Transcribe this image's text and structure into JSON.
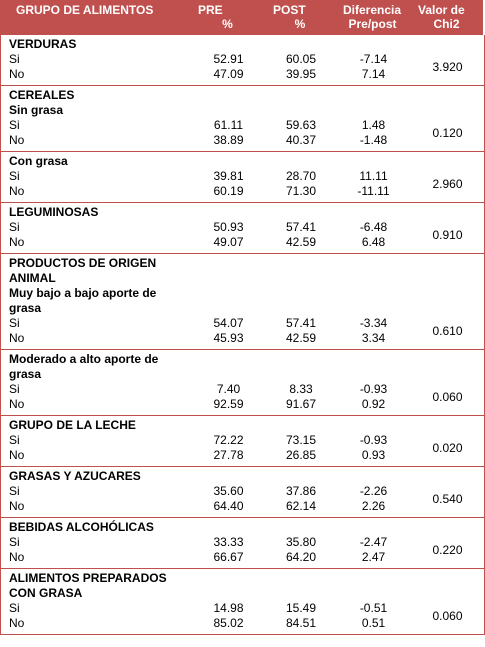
{
  "header": {
    "columns": [
      [
        "GRUPO DE ALIMENTOS"
      ],
      [
        "PRE",
        "%"
      ],
      [
        "POST",
        "%"
      ],
      [
        "Diferencia",
        "Pre/post"
      ],
      [
        "Valor de",
        "Chi2"
      ]
    ]
  },
  "table": {
    "blocks": [
      {
        "headings": [
          "VERDURAS"
        ],
        "rows": [
          [
            "Si",
            "52.91",
            "60.05",
            "-7.14"
          ],
          [
            "No",
            "47.09",
            "39.95",
            "7.14"
          ]
        ],
        "chi2": "3.920"
      },
      {
        "headings": [
          "CEREALES",
          "Sin grasa"
        ],
        "rows": [
          [
            "Si",
            "61.11",
            "59.63",
            "1.48"
          ],
          [
            "No",
            "38.89",
            "40.37",
            "-1.48"
          ]
        ],
        "chi2": "0.120"
      },
      {
        "headings": [
          "Con grasa"
        ],
        "rows": [
          [
            "Si",
            "39.81",
            "28.70",
            "11.11"
          ],
          [
            "No",
            "60.19",
            "71.30",
            "-11.11"
          ]
        ],
        "chi2": "2.960"
      },
      {
        "headings": [
          "LEGUMINOSAS"
        ],
        "rows": [
          [
            "Si",
            "50.93",
            "57.41",
            "-6.48"
          ],
          [
            "No",
            "49.07",
            "42.59",
            "6.48"
          ]
        ],
        "chi2": "0.910"
      },
      {
        "headings": [
          "PRODUCTOS DE ORIGEN ANIMAL",
          "Muy bajo a bajo aporte de grasa"
        ],
        "rows": [
          [
            "Si",
            "54.07",
            "57.41",
            "-3.34"
          ],
          [
            "No",
            "45.93",
            "42.59",
            "3.34"
          ]
        ],
        "chi2": "0.610"
      },
      {
        "headings": [
          "Moderado a alto aporte de grasa"
        ],
        "rows": [
          [
            "Si",
            "7.40",
            "8.33",
            "-0.93"
          ],
          [
            "No",
            "92.59",
            "91.67",
            "0.92"
          ]
        ],
        "chi2": "0.060"
      },
      {
        "headings": [
          "GRUPO DE LA LECHE"
        ],
        "rows": [
          [
            "Si",
            "72.22",
            "73.15",
            "-0.93"
          ],
          [
            "No",
            "27.78",
            "26.85",
            "0.93"
          ]
        ],
        "chi2": "0.020"
      },
      {
        "headings": [
          "GRASAS Y AZUCARES"
        ],
        "rows": [
          [
            "Si",
            "35.60",
            "37.86",
            "-2.26"
          ],
          [
            "No",
            "64.40",
            "62.14",
            "2.26"
          ]
        ],
        "chi2": "0.540"
      },
      {
        "headings": [
          "BEBIDAS ALCOHÓLICAS"
        ],
        "rows": [
          [
            "Si",
            "33.33",
            "35.80",
            "-2.47"
          ],
          [
            "No",
            "66.67",
            "64.20",
            "2.47"
          ]
        ],
        "chi2": "0.220"
      },
      {
        "headings": [
          "ALIMENTOS PREPARADOS CON GRASA"
        ],
        "rows": [
          [
            "Si",
            "14.98",
            "15.49",
            "-0.51"
          ],
          [
            "No",
            "85.02",
            "84.51",
            "0.51"
          ]
        ],
        "chi2": "0.060"
      }
    ]
  }
}
